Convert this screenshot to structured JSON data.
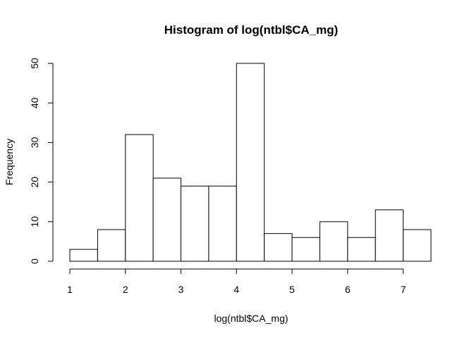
{
  "chart_data": {
    "type": "bar",
    "title": "Histogram of log(ntbl$CA_mg)",
    "xlabel": "log(ntbl$CA_mg)",
    "ylabel": "Frequency",
    "bin_edges": [
      1,
      1.5,
      2,
      2.5,
      3,
      3.5,
      4,
      4.5,
      5,
      5.5,
      6,
      6.5,
      7,
      7.5
    ],
    "values": [
      3,
      8,
      32,
      21,
      19,
      19,
      50,
      7,
      6,
      10,
      6,
      13,
      8
    ],
    "xlim": [
      1,
      7.5
    ],
    "ylim": [
      0,
      50
    ],
    "x_ticks": [
      "1",
      "2",
      "3",
      "4",
      "5",
      "6",
      "7"
    ],
    "y_ticks": [
      "0",
      "10",
      "20",
      "30",
      "40",
      "50"
    ],
    "grid": false,
    "legend": "none"
  }
}
